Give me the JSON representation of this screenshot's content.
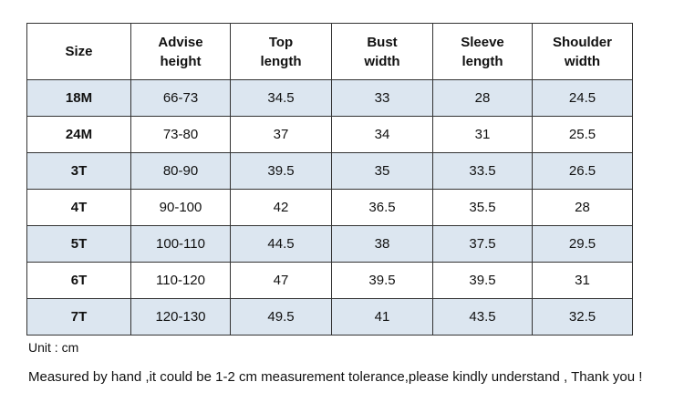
{
  "table": {
    "headers": [
      [
        "Size"
      ],
      [
        "Advise",
        "height"
      ],
      [
        "Top",
        "length"
      ],
      [
        "Bust",
        "width"
      ],
      [
        "Sleeve",
        "length"
      ],
      [
        "Shoulder",
        "width"
      ]
    ],
    "rows": [
      [
        "18M",
        "66-73",
        "34.5",
        "33",
        "28",
        "24.5"
      ],
      [
        "24M",
        "73-80",
        "37",
        "34",
        "31",
        "25.5"
      ],
      [
        "3T",
        "80-90",
        "39.5",
        "35",
        "33.5",
        "26.5"
      ],
      [
        "4T",
        "90-100",
        "42",
        "36.5",
        "35.5",
        "28"
      ],
      [
        "5T",
        "100-110",
        "44.5",
        "38",
        "37.5",
        "29.5"
      ],
      [
        "6T",
        "110-120",
        "47",
        "39.5",
        "39.5",
        "31"
      ],
      [
        "7T",
        "120-130",
        "49.5",
        "41",
        "43.5",
        "32.5"
      ]
    ]
  },
  "notes": {
    "unit": "Unit : cm",
    "disclaimer": "Measured by hand ,it could be 1-2 cm measurement tolerance,please kindly understand , Thank you !"
  }
}
